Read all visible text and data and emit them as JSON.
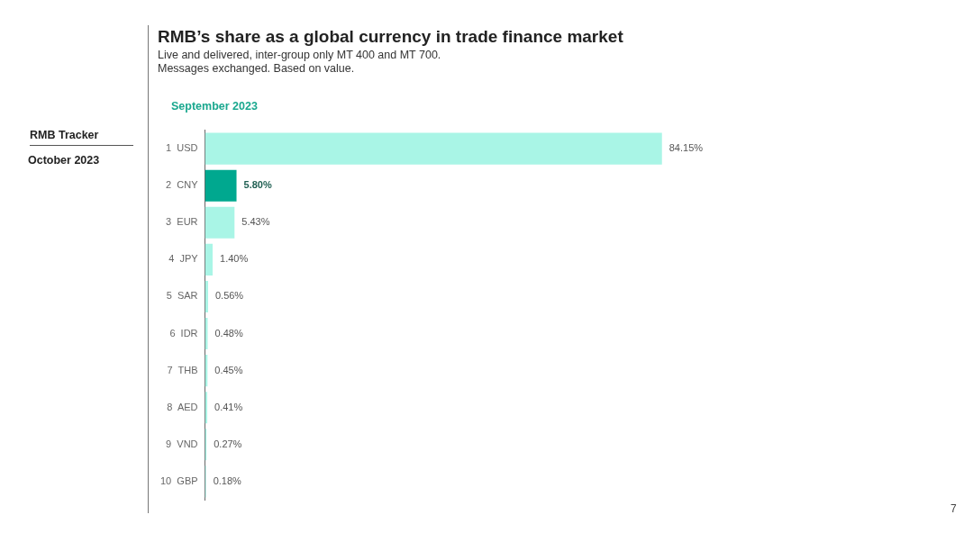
{
  "chart_data": {
    "type": "bar",
    "orientation": "horizontal",
    "title": "RMB’s share as a global currency in trade finance market",
    "subtitle": "Live and delivered, inter-group only MT 400 and MT 700.\nMessages exchanged. Based on value.",
    "categories": [
      "1  USD",
      "2  CNY",
      "3  EUR",
      "4  JPY",
      "5  SAR",
      "6  IDR",
      "7  THB",
      "8  AED",
      "9  VND",
      "10  GBP"
    ],
    "values": [
      84.15,
      5.8,
      5.43,
      1.4,
      0.56,
      0.48,
      0.45,
      0.41,
      0.27,
      0.18
    ],
    "colors": [
      "#a9f5e6",
      "#00a88f",
      "#a9f5e6",
      "#a9f5e6",
      "#a9f5e6",
      "#a9f5e6",
      "#a9f5e6",
      "#a9f5e6",
      "#a9f5e6",
      "#a9f5e6"
    ],
    "value_labels": [
      "84.15%",
      "5.80%",
      "5.43%",
      "1.40%",
      "0.56%",
      "0.48%",
      "0.45%",
      "0.41%",
      "0.27%",
      "0.18%"
    ],
    "legend": false,
    "annotations": [
      "September 2023",
      "RMB Tracker",
      "October 2023",
      "7"
    ]
  }
}
